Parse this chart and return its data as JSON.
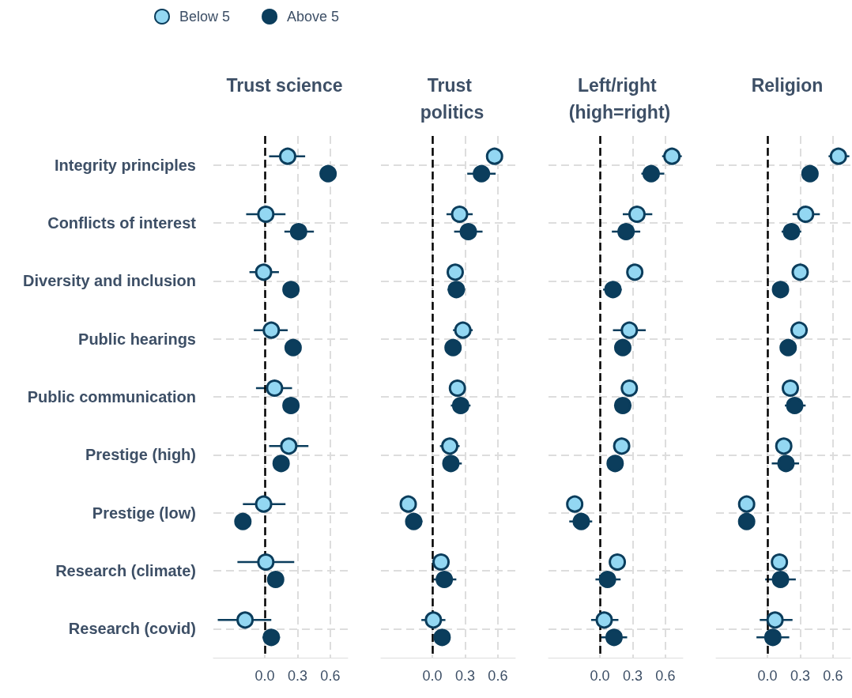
{
  "chart_data": [
    {
      "type": "scatter",
      "title": "Trust science",
      "orientation": "horizontal",
      "marker": "circle",
      "grid": true,
      "legend": "top",
      "categories": [
        "Integrity principles",
        "Conflicts of interest",
        "Diversity and inclusion",
        "Public hearings",
        "Public communication",
        "Prestige (high)",
        "Prestige (low)",
        "Research (climate)",
        "Research (covid)"
      ],
      "xlim": [
        -0.47,
        0.76
      ],
      "xticks": [
        {
          "value": 0,
          "label": "0.0"
        },
        {
          "value": 0.3,
          "label": "0.3"
        },
        {
          "value": 0.6,
          "label": "0.6"
        }
      ],
      "ref_lines": [
        {
          "axis": "x",
          "value": 0,
          "color": "#000000",
          "line_style": "dashed"
        }
      ],
      "series": [
        {
          "name": "Below 5",
          "color": "#93d7f2",
          "values": [
            0.21,
            0.01,
            -0.01,
            0.06,
            0.09,
            0.22,
            -0.01,
            0.01,
            -0.18
          ],
          "errors": [
            [
              0.04,
              0.37
            ],
            [
              -0.17,
              0.19
            ],
            [
              -0.14,
              0.13
            ],
            [
              -0.1,
              0.21
            ],
            [
              -0.08,
              0.25
            ],
            [
              0.04,
              0.4
            ],
            [
              -0.2,
              0.19
            ],
            [
              -0.25,
              0.27
            ],
            [
              -0.43,
              0.06
            ]
          ]
        },
        {
          "name": "Above 5",
          "color": "#0b3d5c",
          "values": [
            0.58,
            0.31,
            0.24,
            0.26,
            0.24,
            0.15,
            -0.2,
            0.1,
            0.06
          ],
          "errors": [
            null,
            [
              0.18,
              0.45
            ],
            null,
            null,
            null,
            null,
            null,
            null,
            [
              -0.02,
              0.14
            ]
          ]
        }
      ]
    },
    {
      "type": "scatter",
      "title": "Trust politics",
      "orientation": "horizontal",
      "marker": "circle",
      "grid": true,
      "tick_labels": "x",
      "categories": [
        "Integrity principles",
        "Conflicts of interest",
        "Diversity and inclusion",
        "Public hearings",
        "Public communication",
        "Prestige (high)",
        "Prestige (low)",
        "Research (climate)",
        "Research (covid)"
      ],
      "xlim": [
        -0.47,
        0.76
      ],
      "xticks": [
        {
          "value": 0,
          "label": "0.0"
        },
        {
          "value": 0.3,
          "label": "0.3"
        },
        {
          "value": 0.6,
          "label": "0.6"
        }
      ],
      "ref_lines": [
        {
          "axis": "x",
          "value": 0,
          "color": "#000000",
          "line_style": "dashed"
        }
      ],
      "series": [
        {
          "color": "#93d7f2",
          "values": [
            0.57,
            0.25,
            0.21,
            0.28,
            0.23,
            0.16,
            -0.22,
            0.08,
            0.01
          ],
          "errors": [
            null,
            [
              0.13,
              0.37
            ],
            null,
            [
              0.19,
              0.37
            ],
            null,
            [
              0.07,
              0.25
            ],
            null,
            null,
            [
              -0.1,
              0.12
            ]
          ]
        },
        {
          "color": "#0b3d5c",
          "values": [
            0.45,
            0.33,
            0.22,
            0.19,
            0.26,
            0.17,
            -0.17,
            0.11,
            0.09
          ],
          "errors": [
            [
              0.32,
              0.58
            ],
            [
              0.2,
              0.46
            ],
            [
              0.14,
              0.3
            ],
            null,
            [
              0.17,
              0.35
            ],
            [
              0.11,
              0.27
            ],
            [
              -0.23,
              -0.09
            ],
            [
              0.01,
              0.22
            ],
            null
          ]
        }
      ]
    },
    {
      "type": "scatter",
      "title": "Left/right (high=right)",
      "orientation": "horizontal",
      "marker": "circle",
      "grid": true,
      "tick_labels": "x",
      "categories": [
        "Integrity principles",
        "Conflicts of interest",
        "Diversity and inclusion",
        "Public hearings",
        "Public communication",
        "Prestige (high)",
        "Prestige (low)",
        "Research (climate)",
        "Research (covid)"
      ],
      "xlim": [
        -0.47,
        0.76
      ],
      "xticks": [
        {
          "value": 0,
          "label": "0.0"
        },
        {
          "value": 0.3,
          "label": "0.3"
        },
        {
          "value": 0.6,
          "label": "0.6"
        }
      ],
      "ref_lines": [
        {
          "axis": "x",
          "value": 0,
          "color": "#000000",
          "line_style": "dashed"
        }
      ],
      "series": [
        {
          "color": "#93d7f2",
          "values": [
            0.66,
            0.34,
            0.32,
            0.27,
            0.27,
            0.2,
            -0.23,
            0.16,
            0.04
          ],
          "errors": [
            [
              0.57,
              0.75
            ],
            [
              0.21,
              0.48
            ],
            null,
            [
              0.12,
              0.42
            ],
            null,
            null,
            null,
            null,
            [
              -0.08,
              0.17
            ]
          ]
        },
        {
          "color": "#0b3d5c",
          "values": [
            0.47,
            0.24,
            0.12,
            0.21,
            0.21,
            0.14,
            -0.17,
            0.07,
            0.13
          ],
          "errors": [
            [
              0.38,
              0.59
            ],
            [
              0.11,
              0.37
            ],
            [
              0.03,
              0.2
            ],
            null,
            [
              0.13,
              0.29
            ],
            [
              0.08,
              0.21
            ],
            [
              -0.28,
              -0.07
            ],
            [
              -0.04,
              0.19
            ],
            [
              0.01,
              0.25
            ]
          ]
        }
      ]
    },
    {
      "type": "scatter",
      "title": "Religion",
      "orientation": "horizontal",
      "marker": "circle",
      "grid": true,
      "tick_labels": "x",
      "categories": [
        "Integrity principles",
        "Conflicts of interest",
        "Diversity and inclusion",
        "Public hearings",
        "Public communication",
        "Prestige (high)",
        "Prestige (low)",
        "Research (climate)",
        "Research (covid)"
      ],
      "xlim": [
        -0.47,
        0.76
      ],
      "xticks": [
        {
          "value": 0,
          "label": "0.0"
        },
        {
          "value": 0.3,
          "label": "0.3"
        },
        {
          "value": 0.6,
          "label": "0.6"
        }
      ],
      "ref_lines": [
        {
          "axis": "x",
          "value": 0,
          "color": "#000000",
          "line_style": "dashed"
        }
      ],
      "series": [
        {
          "color": "#93d7f2",
          "values": [
            0.65,
            0.35,
            0.3,
            0.29,
            0.21,
            0.15,
            -0.19,
            0.11,
            0.07
          ],
          "errors": [
            [
              0.56,
              0.75
            ],
            [
              0.23,
              0.48
            ],
            null,
            [
              0.21,
              0.37
            ],
            null,
            [
              0.1,
              0.22
            ],
            null,
            null,
            [
              -0.07,
              0.23
            ]
          ]
        },
        {
          "color": "#0b3d5c",
          "values": [
            0.39,
            0.22,
            0.12,
            0.19,
            0.25,
            0.17,
            -0.19,
            0.12,
            0.05
          ],
          "errors": [
            null,
            [
              0.13,
              0.31
            ],
            null,
            null,
            [
              0.16,
              0.35
            ],
            [
              0.04,
              0.29
            ],
            [
              -0.25,
              -0.12
            ],
            [
              -0.02,
              0.26
            ],
            [
              -0.1,
              0.2
            ]
          ]
        }
      ]
    }
  ]
}
